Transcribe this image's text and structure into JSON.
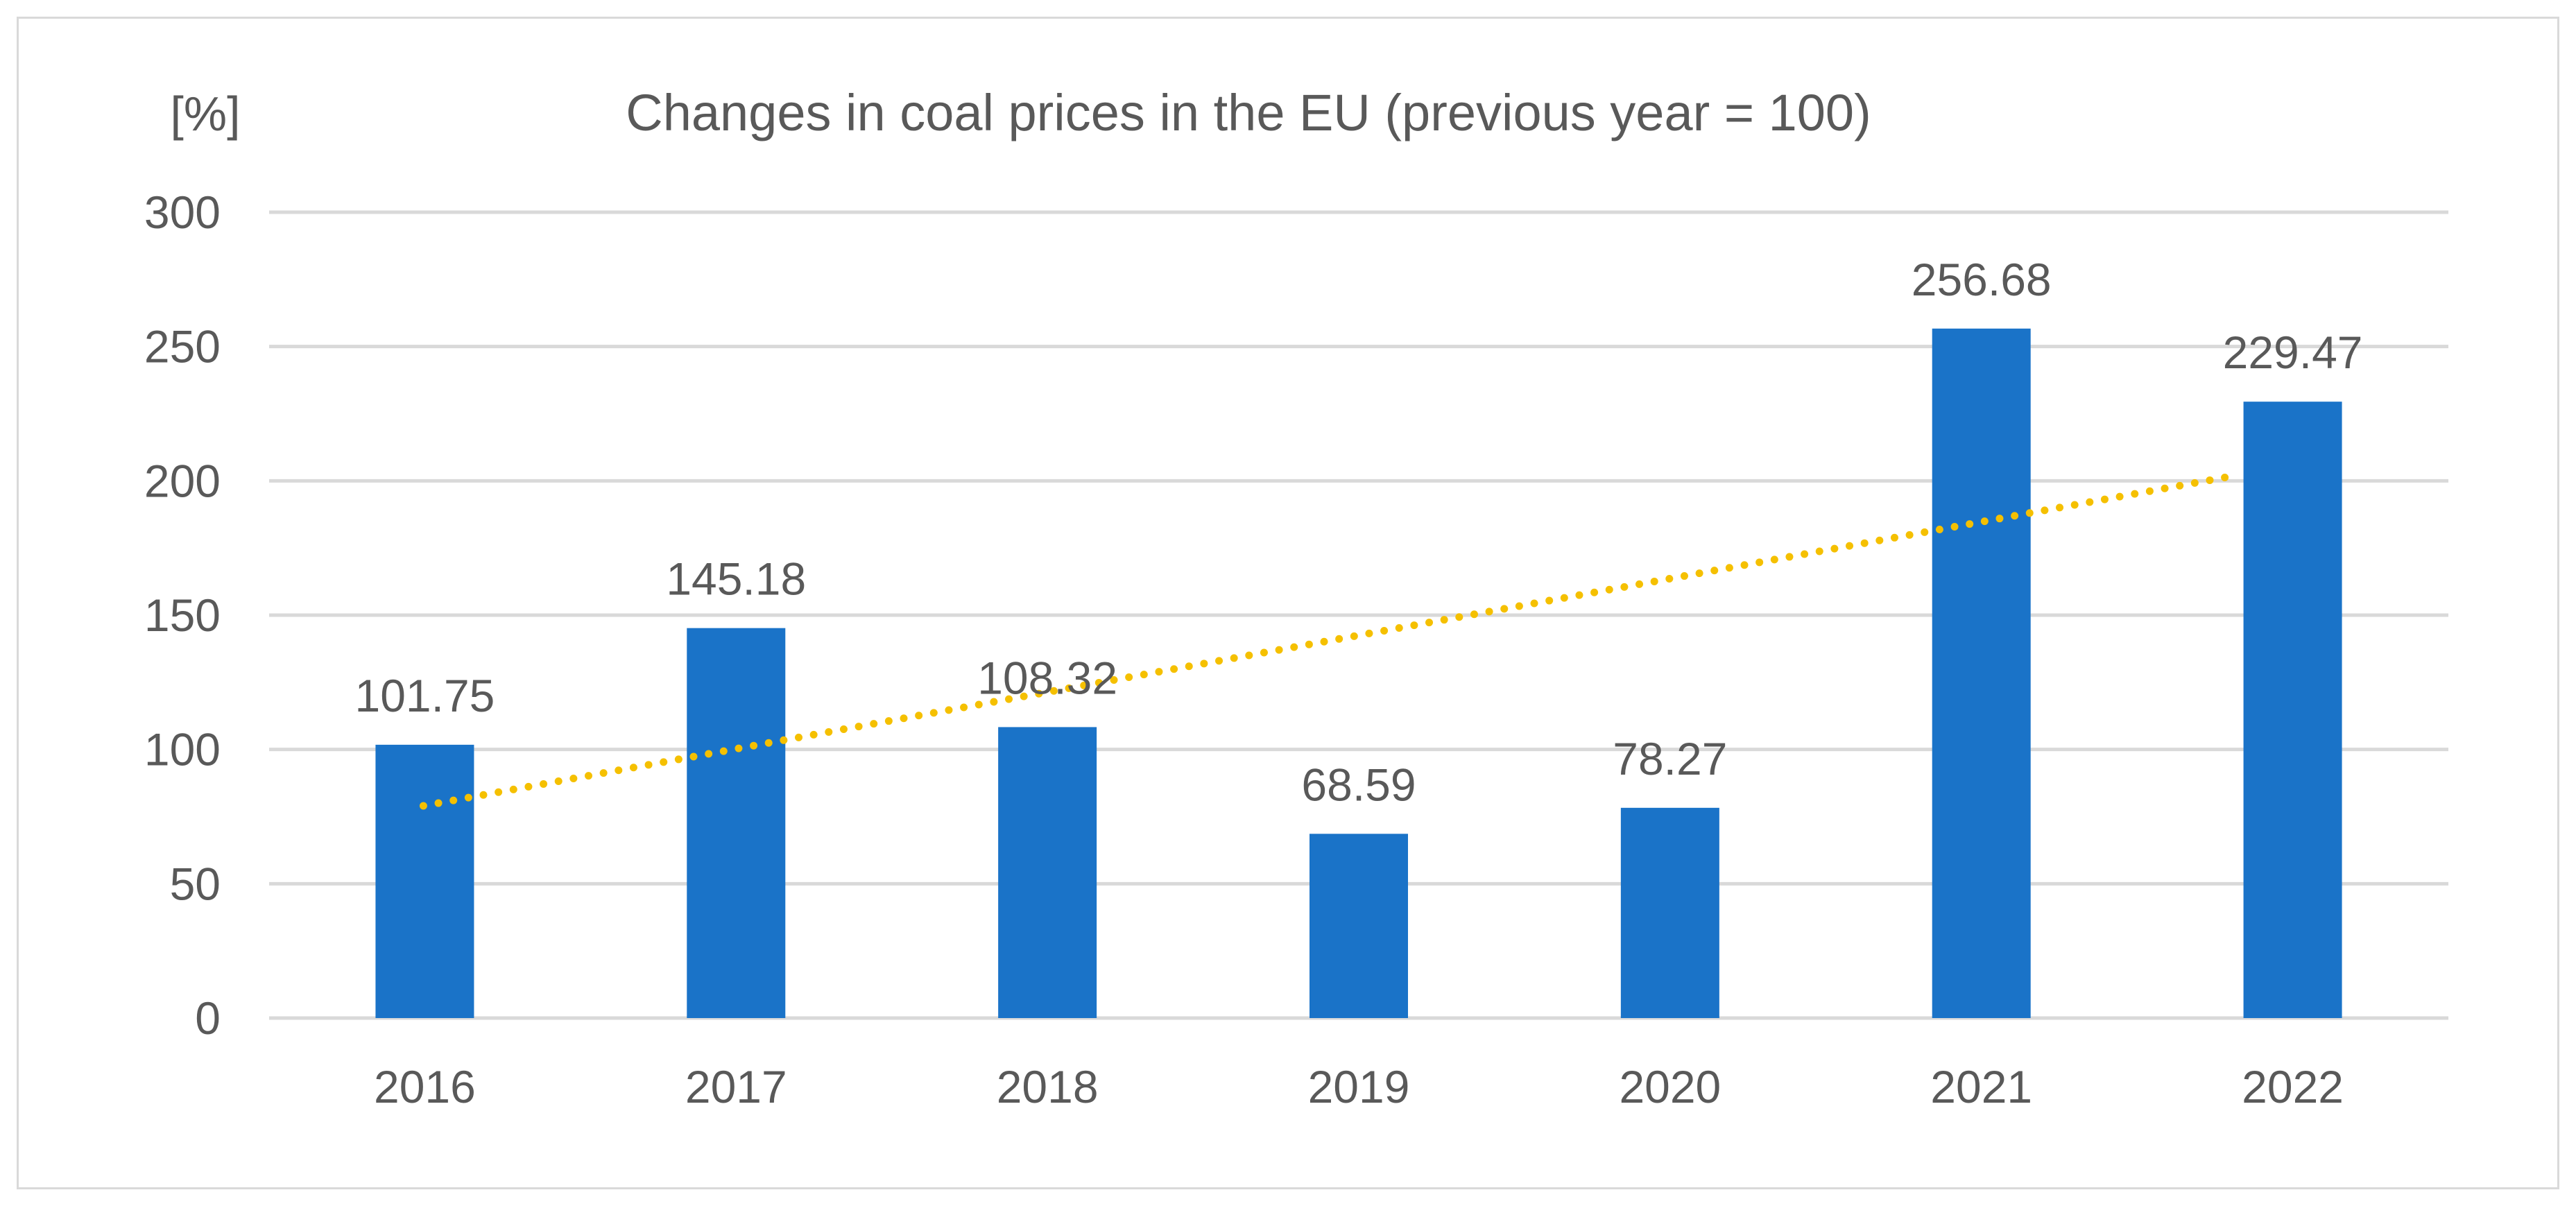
{
  "chart_data": {
    "type": "bar",
    "title": "Changes in coal prices in the EU (previous year = 100)",
    "ylabel": "[%]",
    "xlabel": "",
    "categories": [
      "2016",
      "2017",
      "2018",
      "2019",
      "2020",
      "2021",
      "2022"
    ],
    "values": [
      101.75,
      145.18,
      108.32,
      68.59,
      78.27,
      256.68,
      229.47
    ],
    "data_labels": [
      "101.75",
      "145.18",
      "108.32",
      "68.59",
      "78.27",
      "256.68",
      "229.47"
    ],
    "ylim": [
      0,
      300
    ],
    "yticks": [
      0,
      50,
      100,
      150,
      200,
      250,
      300
    ],
    "ytick_labels": [
      "0",
      "50",
      "100",
      "150",
      "200",
      "250",
      "300"
    ],
    "grid": true,
    "legend": "none",
    "trendline": {
      "type": "linear",
      "style": "dotted",
      "start_value": 79,
      "end_value": 202
    },
    "colors": {
      "bar": "#1a73c8",
      "trend": "#f5c000",
      "grid": "#d9d9d9",
      "text": "#595959"
    }
  }
}
